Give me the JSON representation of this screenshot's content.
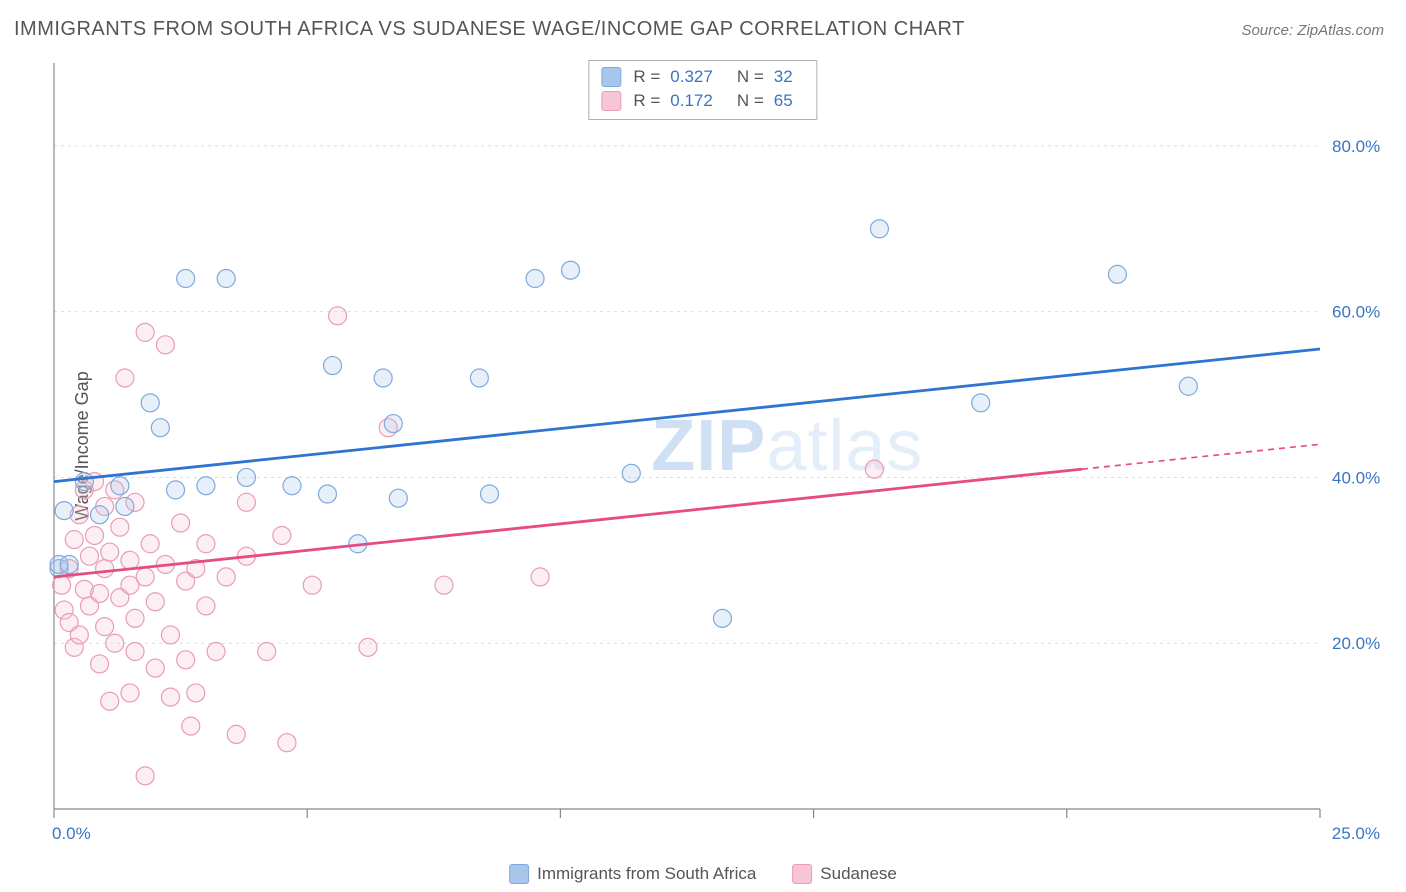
{
  "title": "IMMIGRANTS FROM SOUTH AFRICA VS SUDANESE WAGE/INCOME GAP CORRELATION CHART",
  "source": "Source: ZipAtlas.com",
  "ylabel": "Wage/Income Gap",
  "watermark": {
    "left": "ZIP",
    "right": "atlas"
  },
  "chart": {
    "type": "scatter",
    "background_color": "#ffffff",
    "axis_line_color": "#888888",
    "grid_color": "#dddddd",
    "grid_dash": "3,4",
    "tick_mark_color": "#888888",
    "tick_label_color": "#3a74c4",
    "tick_label_fontsize": 17,
    "marker_radius": 9,
    "marker_stroke_width": 1.2,
    "marker_fill_opacity": 0.28,
    "trend_line_width": 2.8,
    "xlim": [
      0,
      25
    ],
    "ylim": [
      0,
      90
    ],
    "x_ticks": [
      0,
      5,
      10,
      15,
      20,
      25
    ],
    "x_tick_labels": [
      "0.0%",
      "",
      "",
      "",
      "",
      "25.0%"
    ],
    "y_grid": [
      20,
      40,
      60,
      80
    ],
    "y_tick_labels": [
      "20.0%",
      "40.0%",
      "60.0%",
      "80.0%"
    ],
    "series": {
      "sa": {
        "label": "Immigrants from South Africa",
        "color_stroke": "#7FA9DC",
        "color_fill": "#A8C6EB",
        "trend_color": "#2E74D0",
        "trend_solid": {
          "x1": 0,
          "y1": 39.5,
          "x2": 25,
          "y2": 55.5
        },
        "r": "0.327",
        "n": "32",
        "points": [
          {
            "x": 0.1,
            "y": 29.0
          },
          {
            "x": 0.1,
            "y": 29.5
          },
          {
            "x": 0.2,
            "y": 36.0
          },
          {
            "x": 0.6,
            "y": 39.5
          },
          {
            "x": 1.3,
            "y": 39.0
          },
          {
            "x": 0.9,
            "y": 35.5
          },
          {
            "x": 1.4,
            "y": 36.5
          },
          {
            "x": 1.9,
            "y": 49.0
          },
          {
            "x": 2.1,
            "y": 46.0
          },
          {
            "x": 2.4,
            "y": 38.5
          },
          {
            "x": 2.6,
            "y": 64.0
          },
          {
            "x": 3.4,
            "y": 64.0
          },
          {
            "x": 3.0,
            "y": 39.0
          },
          {
            "x": 3.8,
            "y": 40.0
          },
          {
            "x": 4.7,
            "y": 39.0
          },
          {
            "x": 5.5,
            "y": 53.5
          },
          {
            "x": 5.4,
            "y": 38.0
          },
          {
            "x": 6.5,
            "y": 52.0
          },
          {
            "x": 6.7,
            "y": 46.5
          },
          {
            "x": 6.8,
            "y": 37.5
          },
          {
            "x": 6.0,
            "y": 32.0
          },
          {
            "x": 8.4,
            "y": 52.0
          },
          {
            "x": 8.6,
            "y": 38.0
          },
          {
            "x": 9.5,
            "y": 64.0
          },
          {
            "x": 10.2,
            "y": 65.0
          },
          {
            "x": 11.4,
            "y": 40.5
          },
          {
            "x": 13.2,
            "y": 23.0
          },
          {
            "x": 16.3,
            "y": 70.0
          },
          {
            "x": 18.3,
            "y": 49.0
          },
          {
            "x": 21.0,
            "y": 64.5
          },
          {
            "x": 22.4,
            "y": 51.0
          },
          {
            "x": 0.3,
            "y": 29.5
          }
        ]
      },
      "sudanese": {
        "label": "Sudanese",
        "color_stroke": "#E99CB4",
        "color_fill": "#F6C6D5",
        "trend_color": "#E64B83",
        "trend_solid": {
          "x1": 0,
          "y1": 28.0,
          "x2": 20.3,
          "y2": 41.0
        },
        "trend_dashed": {
          "x1": 20.3,
          "y1": 41.0,
          "x2": 25,
          "y2": 44.0
        },
        "r": "0.172",
        "n": "65",
        "points": [
          {
            "x": 0.15,
            "y": 27.0
          },
          {
            "x": 0.2,
            "y": 24.0
          },
          {
            "x": 0.3,
            "y": 22.5
          },
          {
            "x": 0.3,
            "y": 29.0
          },
          {
            "x": 0.4,
            "y": 32.5
          },
          {
            "x": 0.4,
            "y": 19.5
          },
          {
            "x": 0.5,
            "y": 21.0
          },
          {
            "x": 0.5,
            "y": 35.5
          },
          {
            "x": 0.6,
            "y": 38.5
          },
          {
            "x": 0.6,
            "y": 26.5
          },
          {
            "x": 0.7,
            "y": 30.5
          },
          {
            "x": 0.7,
            "y": 24.5
          },
          {
            "x": 0.8,
            "y": 39.5
          },
          {
            "x": 0.8,
            "y": 33.0
          },
          {
            "x": 0.9,
            "y": 26.0
          },
          {
            "x": 0.9,
            "y": 17.5
          },
          {
            "x": 1.0,
            "y": 36.5
          },
          {
            "x": 1.0,
            "y": 29.0
          },
          {
            "x": 1.0,
            "y": 22.0
          },
          {
            "x": 1.1,
            "y": 13.0
          },
          {
            "x": 1.1,
            "y": 31.0
          },
          {
            "x": 1.2,
            "y": 38.5
          },
          {
            "x": 1.2,
            "y": 20.0
          },
          {
            "x": 1.3,
            "y": 25.5
          },
          {
            "x": 1.3,
            "y": 34.0
          },
          {
            "x": 1.4,
            "y": 52.0
          },
          {
            "x": 1.5,
            "y": 27.0
          },
          {
            "x": 1.5,
            "y": 14.0
          },
          {
            "x": 1.5,
            "y": 30.0
          },
          {
            "x": 1.6,
            "y": 37.0
          },
          {
            "x": 1.6,
            "y": 19.0
          },
          {
            "x": 1.6,
            "y": 23.0
          },
          {
            "x": 1.8,
            "y": 4.0
          },
          {
            "x": 1.8,
            "y": 57.5
          },
          {
            "x": 1.8,
            "y": 28.0
          },
          {
            "x": 1.9,
            "y": 32.0
          },
          {
            "x": 2.0,
            "y": 25.0
          },
          {
            "x": 2.0,
            "y": 17.0
          },
          {
            "x": 2.2,
            "y": 56.0
          },
          {
            "x": 2.2,
            "y": 29.5
          },
          {
            "x": 2.3,
            "y": 13.5
          },
          {
            "x": 2.3,
            "y": 21.0
          },
          {
            "x": 2.5,
            "y": 34.5
          },
          {
            "x": 2.6,
            "y": 18.0
          },
          {
            "x": 2.6,
            "y": 27.5
          },
          {
            "x": 2.7,
            "y": 10.0
          },
          {
            "x": 2.8,
            "y": 29.0
          },
          {
            "x": 2.8,
            "y": 14.0
          },
          {
            "x": 3.0,
            "y": 24.5
          },
          {
            "x": 3.0,
            "y": 32.0
          },
          {
            "x": 3.2,
            "y": 19.0
          },
          {
            "x": 3.4,
            "y": 28.0
          },
          {
            "x": 3.6,
            "y": 9.0
          },
          {
            "x": 3.8,
            "y": 37.0
          },
          {
            "x": 3.8,
            "y": 30.5
          },
          {
            "x": 4.2,
            "y": 19.0
          },
          {
            "x": 4.5,
            "y": 33.0
          },
          {
            "x": 4.6,
            "y": 8.0
          },
          {
            "x": 5.1,
            "y": 27.0
          },
          {
            "x": 5.6,
            "y": 59.5
          },
          {
            "x": 6.2,
            "y": 19.5
          },
          {
            "x": 6.6,
            "y": 46.0
          },
          {
            "x": 7.7,
            "y": 27.0
          },
          {
            "x": 9.6,
            "y": 28.0
          },
          {
            "x": 16.2,
            "y": 41.0
          }
        ]
      }
    },
    "bottom_legend": [
      {
        "key": "sa"
      },
      {
        "key": "sudanese"
      }
    ]
  }
}
